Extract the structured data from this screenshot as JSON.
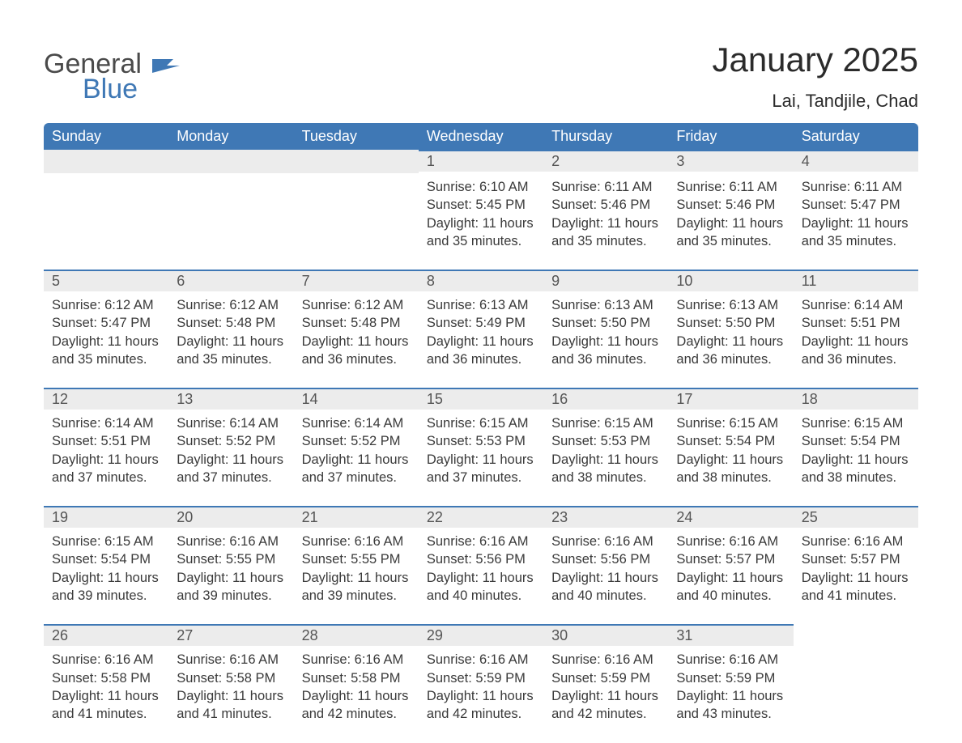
{
  "brand": {
    "general": "General",
    "blue": "Blue"
  },
  "header": {
    "title": "January 2025",
    "location": "Lai, Tandjile, Chad"
  },
  "colors": {
    "header_bg": "#3f78b5",
    "header_text": "#ffffff",
    "daynum_bg": "#ececec",
    "daynum_border": "#3f78b5",
    "body_text": "#3a3a3a",
    "page_bg": "#ffffff",
    "logo_blue": "#3f78b5",
    "logo_gray": "#4a4a4a"
  },
  "type": "table",
  "weekday_labels": [
    "Sunday",
    "Monday",
    "Tuesday",
    "Wednesday",
    "Thursday",
    "Friday",
    "Saturday"
  ],
  "label_prefixes": {
    "sunrise": "Sunrise: ",
    "sunset": "Sunset: ",
    "daylight": "Daylight: "
  },
  "blank_leading_cells": 3,
  "days": [
    {
      "n": "1",
      "sunrise": "6:10 AM",
      "sunset": "5:45 PM",
      "daylight": "11 hours and 35 minutes."
    },
    {
      "n": "2",
      "sunrise": "6:11 AM",
      "sunset": "5:46 PM",
      "daylight": "11 hours and 35 minutes."
    },
    {
      "n": "3",
      "sunrise": "6:11 AM",
      "sunset": "5:46 PM",
      "daylight": "11 hours and 35 minutes."
    },
    {
      "n": "4",
      "sunrise": "6:11 AM",
      "sunset": "5:47 PM",
      "daylight": "11 hours and 35 minutes."
    },
    {
      "n": "5",
      "sunrise": "6:12 AM",
      "sunset": "5:47 PM",
      "daylight": "11 hours and 35 minutes."
    },
    {
      "n": "6",
      "sunrise": "6:12 AM",
      "sunset": "5:48 PM",
      "daylight": "11 hours and 35 minutes."
    },
    {
      "n": "7",
      "sunrise": "6:12 AM",
      "sunset": "5:48 PM",
      "daylight": "11 hours and 36 minutes."
    },
    {
      "n": "8",
      "sunrise": "6:13 AM",
      "sunset": "5:49 PM",
      "daylight": "11 hours and 36 minutes."
    },
    {
      "n": "9",
      "sunrise": "6:13 AM",
      "sunset": "5:50 PM",
      "daylight": "11 hours and 36 minutes."
    },
    {
      "n": "10",
      "sunrise": "6:13 AM",
      "sunset": "5:50 PM",
      "daylight": "11 hours and 36 minutes."
    },
    {
      "n": "11",
      "sunrise": "6:14 AM",
      "sunset": "5:51 PM",
      "daylight": "11 hours and 36 minutes."
    },
    {
      "n": "12",
      "sunrise": "6:14 AM",
      "sunset": "5:51 PM",
      "daylight": "11 hours and 37 minutes."
    },
    {
      "n": "13",
      "sunrise": "6:14 AM",
      "sunset": "5:52 PM",
      "daylight": "11 hours and 37 minutes."
    },
    {
      "n": "14",
      "sunrise": "6:14 AM",
      "sunset": "5:52 PM",
      "daylight": "11 hours and 37 minutes."
    },
    {
      "n": "15",
      "sunrise": "6:15 AM",
      "sunset": "5:53 PM",
      "daylight": "11 hours and 37 minutes."
    },
    {
      "n": "16",
      "sunrise": "6:15 AM",
      "sunset": "5:53 PM",
      "daylight": "11 hours and 38 minutes."
    },
    {
      "n": "17",
      "sunrise": "6:15 AM",
      "sunset": "5:54 PM",
      "daylight": "11 hours and 38 minutes."
    },
    {
      "n": "18",
      "sunrise": "6:15 AM",
      "sunset": "5:54 PM",
      "daylight": "11 hours and 38 minutes."
    },
    {
      "n": "19",
      "sunrise": "6:15 AM",
      "sunset": "5:54 PM",
      "daylight": "11 hours and 39 minutes."
    },
    {
      "n": "20",
      "sunrise": "6:16 AM",
      "sunset": "5:55 PM",
      "daylight": "11 hours and 39 minutes."
    },
    {
      "n": "21",
      "sunrise": "6:16 AM",
      "sunset": "5:55 PM",
      "daylight": "11 hours and 39 minutes."
    },
    {
      "n": "22",
      "sunrise": "6:16 AM",
      "sunset": "5:56 PM",
      "daylight": "11 hours and 40 minutes."
    },
    {
      "n": "23",
      "sunrise": "6:16 AM",
      "sunset": "5:56 PM",
      "daylight": "11 hours and 40 minutes."
    },
    {
      "n": "24",
      "sunrise": "6:16 AM",
      "sunset": "5:57 PM",
      "daylight": "11 hours and 40 minutes."
    },
    {
      "n": "25",
      "sunrise": "6:16 AM",
      "sunset": "5:57 PM",
      "daylight": "11 hours and 41 minutes."
    },
    {
      "n": "26",
      "sunrise": "6:16 AM",
      "sunset": "5:58 PM",
      "daylight": "11 hours and 41 minutes."
    },
    {
      "n": "27",
      "sunrise": "6:16 AM",
      "sunset": "5:58 PM",
      "daylight": "11 hours and 41 minutes."
    },
    {
      "n": "28",
      "sunrise": "6:16 AM",
      "sunset": "5:58 PM",
      "daylight": "11 hours and 42 minutes."
    },
    {
      "n": "29",
      "sunrise": "6:16 AM",
      "sunset": "5:59 PM",
      "daylight": "11 hours and 42 minutes."
    },
    {
      "n": "30",
      "sunrise": "6:16 AM",
      "sunset": "5:59 PM",
      "daylight": "11 hours and 42 minutes."
    },
    {
      "n": "31",
      "sunrise": "6:16 AM",
      "sunset": "5:59 PM",
      "daylight": "11 hours and 43 minutes."
    }
  ]
}
